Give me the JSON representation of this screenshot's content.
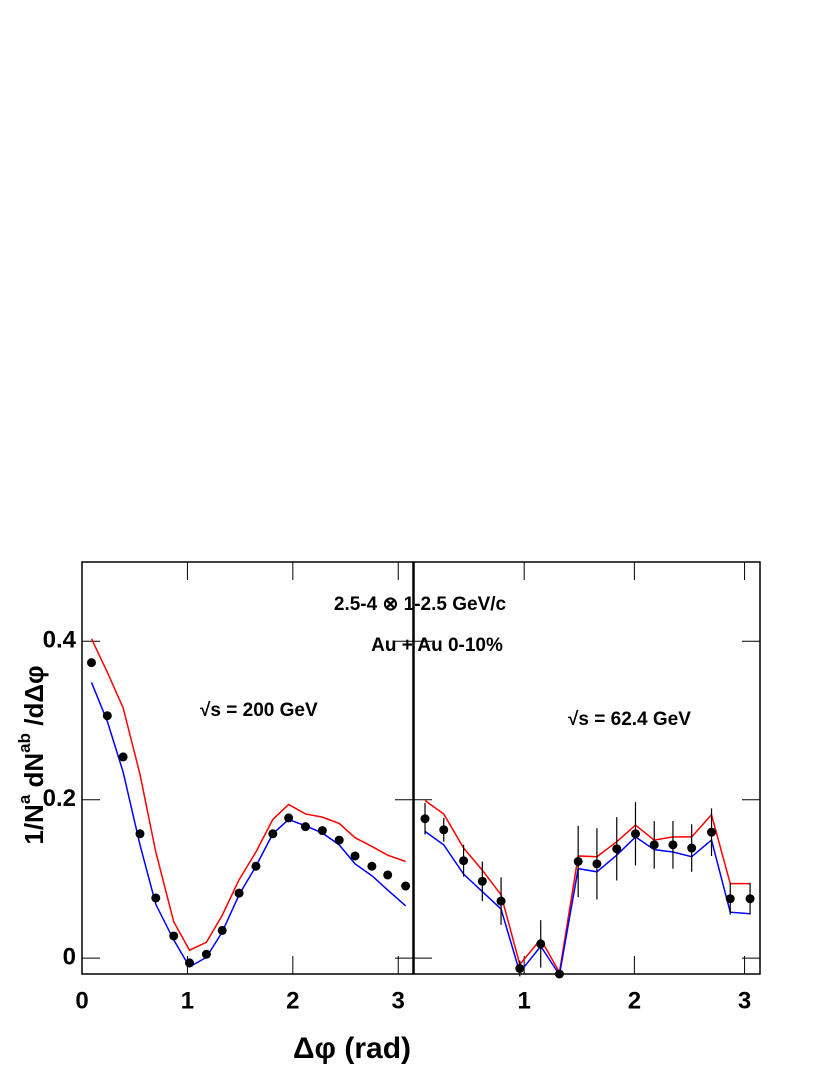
{
  "chart_data": [
    {
      "type": "scatter",
      "title": "2.5-4 ⊗ 1-2.5 GeV/c",
      "subtitle": "Au + Au 0-10%",
      "annotation": "√s = 200 GeV",
      "x_label": "Δφ (rad)",
      "y_label": [
        "1/N",
        "a",
        " dN",
        "ab",
        " /dΔφ"
      ],
      "xlim": [
        0,
        3.14
      ],
      "ylim": [
        -0.02,
        0.5
      ],
      "xticks": [
        0,
        1,
        2,
        3
      ],
      "yticks": [
        0,
        0.2,
        0.4
      ],
      "ytick_labels": true,
      "x": [
        0.09,
        0.24,
        0.39,
        0.55,
        0.7,
        0.87,
        1.02,
        1.18,
        1.33,
        1.49,
        1.65,
        1.81,
        1.96,
        2.12,
        2.28,
        2.44,
        2.59,
        2.75,
        2.9,
        3.07
      ],
      "series": [
        {
          "color": "#ff0000",
          "style": "line",
          "values": [
            0.403,
            0.361,
            0.316,
            0.232,
            0.134,
            0.046,
            0.01,
            0.02,
            0.054,
            0.099,
            0.134,
            0.175,
            0.194,
            0.182,
            0.178,
            0.17,
            0.152,
            0.141,
            0.13,
            0.122
          ]
        },
        {
          "color": "#0000ff",
          "style": "line",
          "values": [
            0.348,
            0.299,
            0.235,
            0.143,
            0.068,
            0.023,
            -0.011,
            0.001,
            0.033,
            0.08,
            0.116,
            0.157,
            0.175,
            0.167,
            0.158,
            0.143,
            0.119,
            0.104,
            0.086,
            0.066
          ]
        },
        {
          "color": "#000000",
          "style": "points",
          "values": [
            0.373,
            0.306,
            0.254,
            0.157,
            0.076,
            0.028,
            -0.006,
            0.005,
            0.035,
            0.082,
            0.116,
            0.157,
            0.177,
            0.166,
            0.161,
            0.149,
            0.129,
            0.116,
            0.105,
            0.091
          ]
        }
      ]
    },
    {
      "type": "scatter",
      "annotation": "√s = 62.4 GeV",
      "xlim": [
        0,
        3.14
      ],
      "ylim": [
        -0.02,
        0.5
      ],
      "xticks": [
        1,
        2,
        3
      ],
      "yticks": [
        0,
        0.2,
        0.4
      ],
      "ytick_labels": false,
      "x": [
        0.1,
        0.27,
        0.45,
        0.62,
        0.79,
        0.96,
        1.15,
        1.32,
        1.49,
        1.66,
        1.84,
        2.01,
        2.18,
        2.35,
        2.52,
        2.7,
        2.87,
        3.05
      ],
      "series": [
        {
          "color": "#ff0000",
          "style": "line",
          "values": [
            0.199,
            0.182,
            0.139,
            0.111,
            0.08,
            -0.008,
            0.024,
            -0.018,
            0.129,
            0.128,
            0.147,
            0.168,
            0.149,
            0.153,
            0.153,
            0.181,
            0.094,
            0.094
          ]
        },
        {
          "color": "#0000ff",
          "style": "line",
          "values": [
            0.16,
            0.143,
            0.106,
            0.084,
            0.062,
            -0.018,
            0.015,
            -0.021,
            0.113,
            0.109,
            0.13,
            0.153,
            0.137,
            0.134,
            0.128,
            0.149,
            0.058,
            0.056
          ]
        },
        {
          "color": "#000000",
          "style": "points",
          "values": [
            0.176,
            0.162,
            0.123,
            0.097,
            0.072,
            -0.013,
            0.018,
            -0.02,
            0.122,
            0.119,
            0.138,
            0.157,
            0.143,
            0.143,
            0.139,
            0.159,
            0.075,
            0.075
          ],
          "errors": [
            0.02,
            0.015,
            0.02,
            0.025,
            0.03,
            0.01,
            0.03,
            0.005,
            0.045,
            0.045,
            0.04,
            0.04,
            0.03,
            0.03,
            0.03,
            0.03,
            0.02,
            0.02
          ]
        }
      ]
    }
  ]
}
